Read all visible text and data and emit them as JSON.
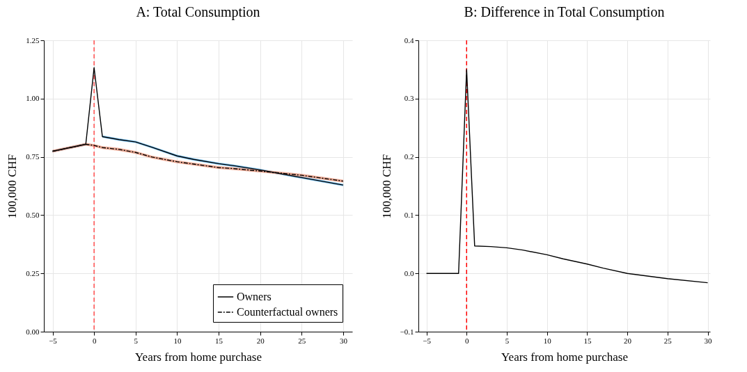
{
  "chart_data": [
    {
      "type": "line",
      "title": "A: Total Consumption",
      "xlabel": "Years from home purchase",
      "ylabel": "100,000 CHF",
      "xlim": [
        -6.05,
        31.1
      ],
      "xticks": [
        {
          "value": -5,
          "label": "−5"
        },
        0,
        5,
        10,
        15,
        20,
        25,
        30
      ],
      "ylim": [
        0,
        1.25
      ],
      "yticks": [
        {
          "value": 0,
          "label": "0.00"
        },
        0.25,
        {
          "value": 0.5,
          "label": "0.50"
        },
        0.75,
        {
          "value": 1,
          "label": "1.00"
        },
        1.25
      ],
      "grid": true,
      "legend": "bottom right",
      "marker": "none",
      "series": [
        {
          "name": "Owners",
          "color": "#000000",
          "line_style": "solid",
          "x": [
            -5,
            -1,
            0,
            1,
            3,
            5,
            7,
            10,
            12,
            15,
            17,
            20,
            25,
            30
          ],
          "values": [
            0.774,
            0.804,
            1.133,
            0.837,
            0.824,
            0.814,
            0.791,
            0.754,
            0.739,
            0.721,
            0.711,
            0.694,
            0.661,
            0.629
          ],
          "lower": [
            0.769,
            0.799,
            1.128,
            0.832,
            0.819,
            0.809,
            0.786,
            0.749,
            0.734,
            0.716,
            0.706,
            0.689,
            0.656,
            0.624
          ],
          "upper": [
            0.779,
            0.809,
            1.138,
            0.842,
            0.829,
            0.819,
            0.796,
            0.759,
            0.744,
            0.726,
            0.716,
            0.699,
            0.666,
            0.634
          ]
        },
        {
          "name": "Counterfactual owners",
          "color": "#000000",
          "line_style": "dashed",
          "x": [
            -5,
            -1,
            0,
            1,
            3,
            5,
            7,
            10,
            12,
            15,
            17,
            20,
            25,
            30
          ],
          "values": [
            0.774,
            0.804,
            0.799,
            0.79,
            0.782,
            0.769,
            0.749,
            0.729,
            0.719,
            0.704,
            0.699,
            0.689,
            0.671,
            0.646
          ],
          "lower": [
            0.768,
            0.798,
            0.793,
            0.784,
            0.776,
            0.763,
            0.743,
            0.723,
            0.713,
            0.698,
            0.693,
            0.683,
            0.665,
            0.64
          ],
          "upper": [
            0.78,
            0.81,
            0.805,
            0.796,
            0.788,
            0.775,
            0.755,
            0.735,
            0.725,
            0.71,
            0.705,
            0.695,
            0.677,
            0.652
          ]
        }
      ],
      "ref_lines": [
        {
          "axis": "x",
          "value": 0,
          "color": "#ff4d4d",
          "line_style": "dashed"
        }
      ]
    },
    {
      "type": "line",
      "title": "B: Difference in Total Consumption",
      "xlabel": "Years from home purchase",
      "ylabel": "100,000 CHF",
      "xlim": [
        -6.0,
        30.3
      ],
      "xticks": [
        {
          "value": -5,
          "label": "−5"
        },
        0,
        5,
        10,
        15,
        20,
        25,
        30
      ],
      "ylim": [
        -0.1,
        0.4
      ],
      "yticks": [
        {
          "value": -0.1,
          "label": "−0.1"
        },
        {
          "value": 0,
          "label": "0.0"
        },
        0.1,
        0.2,
        0.3,
        0.4
      ],
      "grid": true,
      "legend": false,
      "marker": "none",
      "series": [
        {
          "color": "#000000",
          "line_style": "solid",
          "x": [
            -5,
            -1,
            0,
            1,
            3,
            5,
            7,
            10,
            12,
            15,
            17,
            20,
            25,
            30
          ],
          "values": [
            0,
            0,
            0.35,
            0.047,
            0.046,
            0.044,
            0.04,
            0.032,
            0.025,
            0.016,
            0.009,
            0.0,
            -0.009,
            -0.016
          ]
        }
      ],
      "ref_lines": [
        {
          "axis": "x",
          "value": 0,
          "color": "#ff0000",
          "line_style": "dashed"
        }
      ]
    }
  ]
}
